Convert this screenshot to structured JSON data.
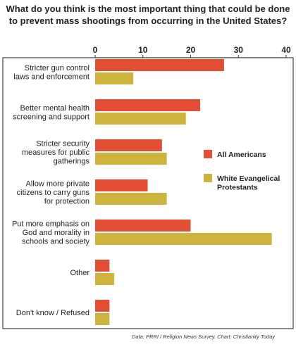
{
  "title_lines": [
    "What do you think is the most important thing that could be done",
    "to prevent mass shootings from occurring in the United States?"
  ],
  "source": "Data: PRRI / Religion News Survey. Chart: Christianity Today",
  "colors": {
    "all_americans": "#E24E33",
    "white_evangelical": "#CEB43E",
    "axis": "#333333",
    "frame": "#1a1a1a"
  },
  "chart_data": {
    "type": "bar",
    "orientation": "horizontal",
    "title": "What do you think is the most important thing that could be done to prevent mass shootings from occurring in the United States?",
    "categories": [
      [
        "Stricter gun control",
        "laws and enforcement"
      ],
      [
        "Better mental health",
        "screening and support"
      ],
      [
        "Stricter security",
        "measures for public",
        "gatherings"
      ],
      [
        "Allow more private",
        "citizens to carry guns",
        "for protection"
      ],
      [
        "Put more emphasis on",
        "God and morality in",
        "schools and society"
      ],
      [
        "Other"
      ],
      [
        "Don't know / Refused"
      ]
    ],
    "series": [
      {
        "name": "All Americans",
        "values": [
          27,
          22,
          14,
          11,
          20,
          3,
          3
        ]
      },
      {
        "name": "White Evangelical Protestants",
        "values": [
          8,
          19,
          15,
          15,
          37,
          4,
          3
        ]
      }
    ],
    "legend_labels": [
      [
        "All Americans"
      ],
      [
        "White Evangelical",
        "Protestants"
      ]
    ],
    "xlim": [
      0,
      40
    ],
    "xticks": [
      0,
      10,
      20,
      30,
      40
    ],
    "xlabel": "",
    "ylabel": "",
    "grid": false,
    "axis_position": "top",
    "legend_position": "right"
  }
}
